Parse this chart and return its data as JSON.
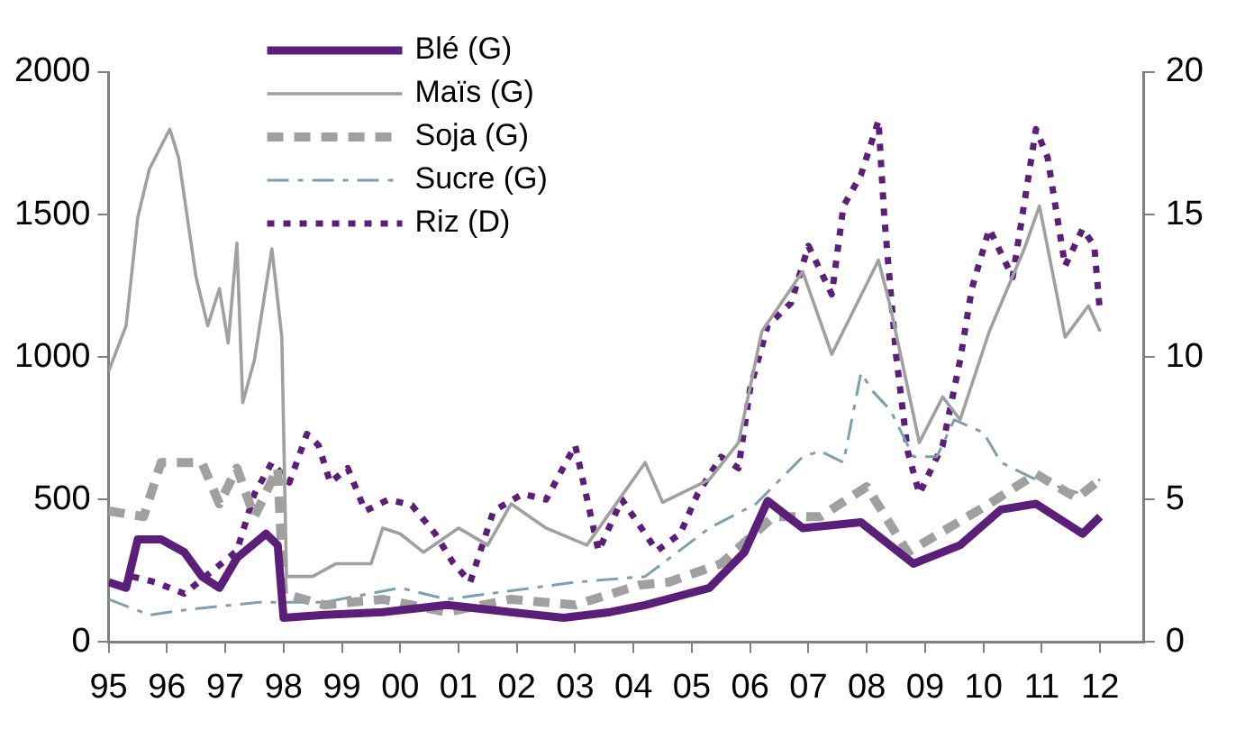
{
  "chart_data": {
    "type": "line",
    "xlim": [
      1995,
      2012.75
    ],
    "xticks": [
      {
        "value": 1995,
        "label": "95"
      },
      {
        "value": 1996,
        "label": "96"
      },
      {
        "value": 1997,
        "label": "97"
      },
      {
        "value": 1998,
        "label": "98"
      },
      {
        "value": 1999,
        "label": "99"
      },
      {
        "value": 2000,
        "label": "00"
      },
      {
        "value": 2001,
        "label": "01"
      },
      {
        "value": 2002,
        "label": "02"
      },
      {
        "value": 2003,
        "label": "03"
      },
      {
        "value": 2004,
        "label": "04"
      },
      {
        "value": 2005,
        "label": "05"
      },
      {
        "value": 2006,
        "label": "06"
      },
      {
        "value": 2007,
        "label": "07"
      },
      {
        "value": 2008,
        "label": "08"
      },
      {
        "value": 2009,
        "label": "09"
      },
      {
        "value": 2010,
        "label": "10"
      },
      {
        "value": 2011,
        "label": "11"
      },
      {
        "value": 2012,
        "label": "12"
      }
    ],
    "ylim": [
      0,
      2000
    ],
    "yticks": [
      0,
      500,
      1000,
      1500,
      2000
    ],
    "y2lim": [
      0,
      20
    ],
    "y2ticks": [
      0,
      5,
      10,
      15,
      20
    ],
    "grid": false,
    "legend": "top left",
    "marker": "none",
    "series": [
      {
        "name": "Blé (G)",
        "color": "#5b1f7a",
        "line_style": "solid",
        "x": [
          1995,
          1995.3,
          1995.5,
          1995.9,
          1996.3,
          1996.6,
          1996.9,
          1997.2,
          1997.7,
          1997.9,
          1998.0,
          1998.7,
          1999.7,
          2000.8,
          2001.9,
          2002.8,
          2003.6,
          2004.2,
          2005.3,
          2005.9,
          2006.3,
          2006.9,
          2007.9,
          2008.8,
          2009.6,
          2010.3,
          2010.9,
          2011.7,
          2012.0
        ],
        "values": [
          210,
          190,
          360,
          360,
          315,
          230,
          190,
          295,
          380,
          340,
          85,
          95,
          105,
          130,
          105,
          85,
          105,
          130,
          190,
          315,
          495,
          400,
          420,
          275,
          340,
          465,
          485,
          380,
          440
        ]
      },
      {
        "name": "Maïs (G)",
        "color": "#a0a0a0",
        "line_style": "solid",
        "x": [
          1995,
          1995.3,
          1995.5,
          1995.7,
          1996.05,
          1996.2,
          1996.5,
          1996.7,
          1996.9,
          1997.05,
          1997.2,
          1997.3,
          1997.5,
          1997.8,
          1997.97,
          1998.05,
          1998.5,
          1998.9,
          1999.5,
          1999.7,
          2000.0,
          2000.4,
          2001.0,
          2001.5,
          2001.9,
          2002.5,
          2003.2,
          2004.2,
          2004.5,
          2005.3,
          2005.8,
          2006.2,
          2006.9,
          2007.4,
          2008.2,
          2008.4,
          2008.9,
          2009.3,
          2009.6,
          2010.1,
          2010.7,
          2010.96,
          2011.2,
          2011.4,
          2011.8,
          2012.0
        ],
        "values": [
          950,
          1110,
          1490,
          1660,
          1800,
          1700,
          1280,
          1110,
          1240,
          1050,
          1400,
          840,
          990,
          1380,
          1070,
          230,
          230,
          275,
          275,
          400,
          380,
          315,
          400,
          340,
          485,
          400,
          340,
          630,
          490,
          570,
          700,
          1090,
          1300,
          1010,
          1340,
          1180,
          700,
          860,
          780,
          1090,
          1380,
          1530,
          1280,
          1070,
          1180,
          1090
        ]
      },
      {
        "name": "Soja (G)",
        "color": "#a0a0a0",
        "line_style": "dashed",
        "x": [
          1995,
          1995.6,
          1995.9,
          1996.6,
          1996.9,
          1997.2,
          1997.5,
          1997.9,
          1998.0,
          1998.7,
          1999.7,
          2000.8,
          2001.9,
          2003.0,
          2004.1,
          2004.6,
          2005.5,
          2006.4,
          2007.2,
          2008.0,
          2008.7,
          2009.4,
          2010.1,
          2010.9,
          2011.6,
          2012.0
        ],
        "values": [
          460,
          440,
          630,
          630,
          485,
          610,
          440,
          610,
          170,
          130,
          150,
          105,
          150,
          130,
          200,
          210,
          275,
          440,
          440,
          545,
          315,
          400,
          485,
          590,
          505,
          570
        ]
      },
      {
        "name": "Sucre (G)",
        "color": "#7f9fae",
        "line_style": "dashdot",
        "x": [
          1995,
          1995.7,
          1996.4,
          1997.6,
          1998.1,
          1998.7,
          2000.0,
          2000.8,
          2001.9,
          2003.0,
          2004.2,
          2005.3,
          2006.1,
          2006.9,
          2007.2,
          2007.6,
          2007.9,
          2008.1,
          2008.4,
          2008.8,
          2009.2,
          2009.5,
          2010.0,
          2010.3,
          2010.9,
          2011.6,
          2012.0
        ],
        "values": [
          150,
          95,
          115,
          140,
          140,
          140,
          190,
          150,
          180,
          210,
          230,
          400,
          485,
          650,
          670,
          630,
          945,
          880,
          815,
          650,
          650,
          780,
          735,
          630,
          570,
          525,
          570
        ]
      },
      {
        "name": "Riz (D)",
        "color": "#5b1f7a",
        "line_style": "dotted",
        "axis": "y2",
        "x": [
          1995.4,
          1995.8,
          1996.3,
          1997.2,
          1997.5,
          1997.8,
          1998.1,
          1998.4,
          1998.6,
          1998.8,
          1999.1,
          1999.4,
          1999.8,
          2000.2,
          2000.6,
          2000.9,
          2001.2,
          2001.6,
          2002.1,
          2002.5,
          2003.0,
          2003.4,
          2003.8,
          2004.4,
          2004.8,
          2005.1,
          2005.5,
          2005.8,
          2006.0,
          2006.3,
          2006.7,
          2007.0,
          2007.4,
          2007.6,
          2007.9,
          2008.2,
          2008.3,
          2008.5,
          2008.7,
          2008.9,
          2009.3,
          2009.6,
          2009.8,
          2010.1,
          2010.5,
          2010.9,
          2011.1,
          2011.4,
          2011.7,
          2011.9,
          2012.0
        ],
        "values": [
          2.3,
          2.1,
          1.7,
          3.2,
          5.2,
          6.3,
          5.6,
          7.3,
          6.9,
          5.6,
          6.1,
          4.6,
          5.0,
          4.8,
          3.8,
          2.8,
          2.1,
          4.6,
          5.2,
          5.0,
          6.9,
          3.2,
          5.0,
          3.2,
          3.8,
          5.2,
          6.5,
          6.1,
          8.9,
          11.1,
          11.9,
          13.9,
          12.2,
          15.3,
          16.4,
          18.3,
          14.9,
          10.1,
          6.7,
          5.2,
          6.9,
          9.9,
          12.4,
          14.5,
          12.8,
          18.0,
          17.0,
          13.2,
          14.5,
          13.9,
          11.5
        ]
      }
    ]
  }
}
